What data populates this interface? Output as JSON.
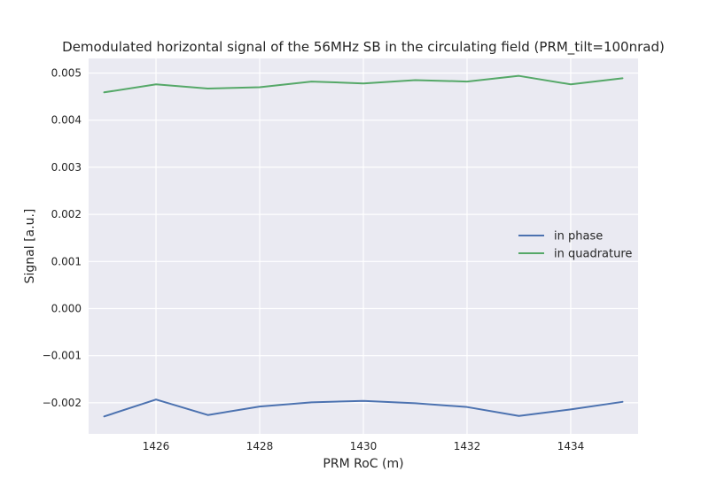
{
  "chart_data": {
    "type": "line",
    "title": "Demodulated horizontal signal of the 56MHz SB in the circulating field (PRM_tilt=100nrad)",
    "xlabel": "PRM RoC (m)",
    "ylabel": "Signal [a.u.]",
    "xlim": [
      1424.7,
      1435.3
    ],
    "ylim": [
      -0.00266,
      0.00531
    ],
    "xticks": [
      1426,
      1428,
      1430,
      1432,
      1434
    ],
    "xtick_labels": [
      "1426",
      "1428",
      "1430",
      "1432",
      "1434"
    ],
    "yticks": [
      -0.002,
      -0.001,
      0.0,
      0.001,
      0.002,
      0.003,
      0.004,
      0.005
    ],
    "ytick_labels": [
      "−0.002",
      "−0.001",
      "0.000",
      "0.001",
      "0.002",
      "0.003",
      "0.004",
      "0.005"
    ],
    "grid": true,
    "legend": "center-right",
    "x": [
      1425,
      1426,
      1427,
      1428,
      1429,
      1430,
      1431,
      1432,
      1433,
      1434,
      1435
    ],
    "series": [
      {
        "name": "in phase",
        "color": "#4c72b0",
        "values": [
          -0.00229,
          -0.00193,
          -0.00226,
          -0.00208,
          -0.00199,
          -0.00196,
          -0.00201,
          -0.00209,
          -0.00228,
          -0.00214,
          -0.00198
        ]
      },
      {
        "name": "in quadrature",
        "color": "#55a868",
        "values": [
          0.00459,
          0.00476,
          0.00467,
          0.0047,
          0.00482,
          0.00478,
          0.00485,
          0.00482,
          0.00494,
          0.00476,
          0.00489
        ]
      }
    ]
  }
}
